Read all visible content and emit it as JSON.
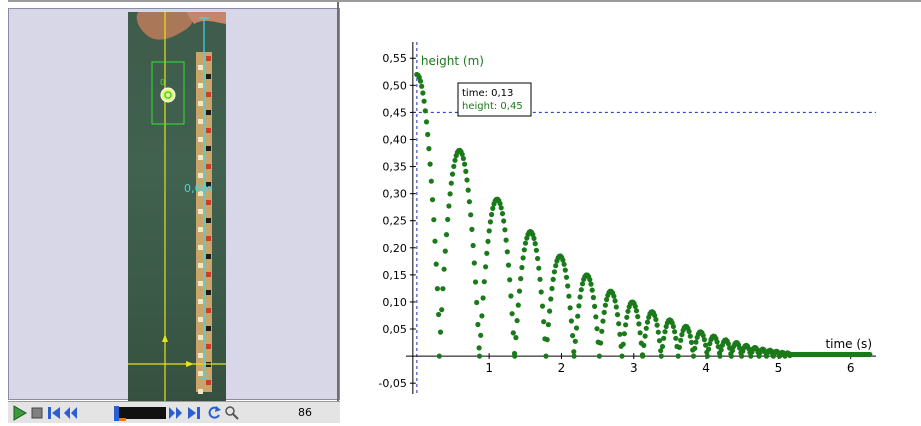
{
  "video": {
    "calibration_label": "0,6m",
    "frame_number": "86",
    "track_label": "0"
  },
  "toolbar": {
    "buttons": [
      "play-icon",
      "stop-icon",
      "first-frame-icon",
      "step-back-icon",
      "frame-slider",
      "step-forward-icon",
      "last-frame-icon",
      "reset-icon",
      "zoom-icon"
    ]
  },
  "readout": {
    "time_label": "time: 0,13",
    "height_label": "height: 0,45"
  },
  "chart_data": {
    "type": "scatter",
    "xlabel": "time (s)",
    "ylabel": "height (m)",
    "xlim": [
      -0.15,
      6.35
    ],
    "ylim": [
      -0.07,
      0.58
    ],
    "x_ticks": [
      "1",
      "2",
      "3",
      "4",
      "5",
      "6"
    ],
    "y_ticks": [
      "0,55",
      "0,50",
      "0,45",
      "0,40",
      "0,35",
      "0,30",
      "0,25",
      "0,20",
      "0,15",
      "0,10",
      "0,05",
      "-0,05"
    ],
    "y_tick_values": [
      0.55,
      0.5,
      0.45,
      0.4,
      0.35,
      0.3,
      0.25,
      0.2,
      0.15,
      0.1,
      0.05,
      -0.05
    ],
    "x_tick_values": [
      1,
      2,
      3,
      4,
      5,
      6
    ],
    "reference_line_y": 0.45,
    "reference_line_x": 0,
    "series": [
      {
        "start_height": 0.52,
        "first_impact": 0.31,
        "bounce_peaks": [
          0.38,
          0.29,
          0.23,
          0.185,
          0.15,
          0.12,
          0.1,
          0.082,
          0.067,
          0.055,
          0.045,
          0.037,
          0.03,
          0.025,
          0.02,
          0.016,
          0.013,
          0.011,
          0.009,
          0.007,
          0.006
        ],
        "floor_height": 0.003,
        "t_end": 6.27
      }
    ],
    "color": "#1a7a1a",
    "ref_color": "#1f2fb8"
  }
}
